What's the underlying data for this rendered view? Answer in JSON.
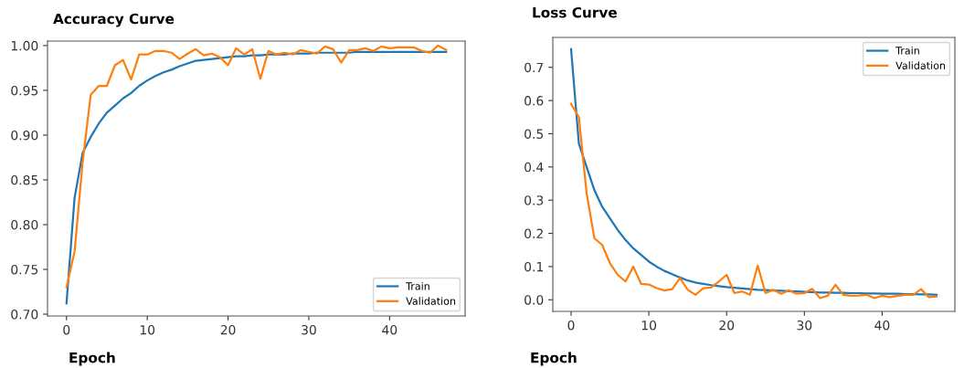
{
  "chart_data": [
    {
      "type": "line",
      "title": "Accuracy Curve",
      "xlabel": "Epoch",
      "legend": "lower right",
      "grid": false,
      "x": [
        0,
        1,
        2,
        3,
        4,
        5,
        6,
        7,
        8,
        9,
        10,
        11,
        12,
        13,
        14,
        15,
        16,
        17,
        18,
        19,
        20,
        21,
        22,
        23,
        24,
        25,
        26,
        27,
        28,
        29,
        30,
        31,
        32,
        33,
        34,
        35,
        36,
        37,
        38,
        39,
        40,
        41,
        42,
        43,
        44,
        45,
        46,
        47
      ],
      "series": [
        {
          "name": "Train",
          "color": "#1f77b4",
          "values": [
            0.712,
            0.83,
            0.88,
            0.898,
            0.913,
            0.925,
            0.933,
            0.941,
            0.947,
            0.955,
            0.961,
            0.966,
            0.97,
            0.973,
            0.977,
            0.98,
            0.983,
            0.984,
            0.985,
            0.986,
            0.987,
            0.988,
            0.988,
            0.989,
            0.989,
            0.99,
            0.99,
            0.99,
            0.991,
            0.991,
            0.991,
            0.992,
            0.992,
            0.992,
            0.992,
            0.992,
            0.993,
            0.993,
            0.993,
            0.993,
            0.993,
            0.993,
            0.993,
            0.993,
            0.993,
            0.993,
            0.993,
            0.993
          ]
        },
        {
          "name": "Validation",
          "color": "#ff7f0e",
          "values": [
            0.73,
            0.77,
            0.87,
            0.945,
            0.955,
            0.955,
            0.978,
            0.984,
            0.962,
            0.99,
            0.99,
            0.994,
            0.994,
            0.992,
            0.985,
            0.991,
            0.996,
            0.989,
            0.991,
            0.987,
            0.978,
            0.997,
            0.99,
            0.996,
            0.963,
            0.994,
            0.99,
            0.992,
            0.99,
            0.995,
            0.993,
            0.991,
            0.999,
            0.996,
            0.981,
            0.995,
            0.995,
            0.997,
            0.994,
            0.999,
            0.997,
            0.998,
            0.998,
            0.998,
            0.994,
            0.992,
            1.0,
            0.995
          ]
        }
      ],
      "xlim": [
        -2.35,
        49.35
      ],
      "ylim": [
        0.698,
        1.005
      ],
      "xticks": [
        0,
        10,
        20,
        30,
        40
      ],
      "yticks": [
        {
          "value": 0.7,
          "label": "0.70"
        },
        {
          "value": 0.75,
          "label": "0.75"
        },
        {
          "value": 0.8,
          "label": "0.80"
        },
        {
          "value": 0.85,
          "label": "0.85"
        },
        {
          "value": 0.9,
          "label": "0.90"
        },
        {
          "value": 0.95,
          "label": "0.95"
        },
        {
          "value": 1.0,
          "label": "1.00"
        }
      ]
    },
    {
      "type": "line",
      "title": "Loss Curve",
      "xlabel": "Epoch",
      "legend": "upper right",
      "grid": false,
      "x": [
        0,
        1,
        2,
        3,
        4,
        5,
        6,
        7,
        8,
        9,
        10,
        11,
        12,
        13,
        14,
        15,
        16,
        17,
        18,
        19,
        20,
        21,
        22,
        23,
        24,
        25,
        26,
        27,
        28,
        29,
        30,
        31,
        32,
        33,
        34,
        35,
        36,
        37,
        38,
        39,
        40,
        41,
        42,
        43,
        44,
        45,
        46,
        47
      ],
      "series": [
        {
          "name": "Train",
          "color": "#1f77b4",
          "values": [
            0.755,
            0.47,
            0.4,
            0.33,
            0.28,
            0.245,
            0.21,
            0.18,
            0.155,
            0.135,
            0.115,
            0.1,
            0.087,
            0.077,
            0.067,
            0.058,
            0.052,
            0.048,
            0.044,
            0.041,
            0.038,
            0.036,
            0.034,
            0.032,
            0.03,
            0.029,
            0.028,
            0.027,
            0.026,
            0.025,
            0.024,
            0.023,
            0.022,
            0.022,
            0.021,
            0.021,
            0.02,
            0.02,
            0.019,
            0.019,
            0.018,
            0.018,
            0.018,
            0.017,
            0.017,
            0.016,
            0.016,
            0.015
          ]
        },
        {
          "name": "Validation",
          "color": "#ff7f0e",
          "values": [
            0.59,
            0.55,
            0.32,
            0.185,
            0.165,
            0.11,
            0.075,
            0.055,
            0.1,
            0.048,
            0.046,
            0.035,
            0.028,
            0.032,
            0.065,
            0.03,
            0.015,
            0.035,
            0.037,
            0.055,
            0.075,
            0.02,
            0.025,
            0.015,
            0.103,
            0.02,
            0.03,
            0.018,
            0.028,
            0.018,
            0.02,
            0.033,
            0.005,
            0.012,
            0.045,
            0.015,
            0.012,
            0.013,
            0.015,
            0.005,
            0.012,
            0.008,
            0.012,
            0.015,
            0.015,
            0.032,
            0.008,
            0.01
          ]
        }
      ],
      "xlim": [
        -2.35,
        49.35
      ],
      "ylim": [
        -0.035,
        0.79
      ],
      "xticks": [
        0,
        10,
        20,
        30,
        40
      ],
      "yticks": [
        {
          "value": 0.0,
          "label": "0.0"
        },
        {
          "value": 0.1,
          "label": "0.1"
        },
        {
          "value": 0.2,
          "label": "0.2"
        },
        {
          "value": 0.3,
          "label": "0.3"
        },
        {
          "value": 0.4,
          "label": "0.4"
        },
        {
          "value": 0.5,
          "label": "0.5"
        },
        {
          "value": 0.6,
          "label": "0.6"
        },
        {
          "value": 0.7,
          "label": "0.7"
        }
      ]
    }
  ]
}
